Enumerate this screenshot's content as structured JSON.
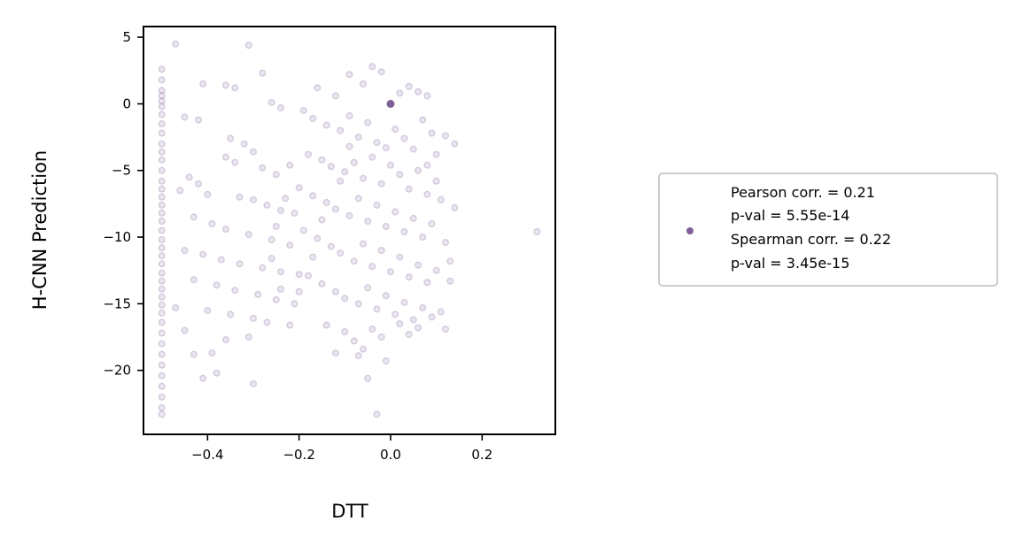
{
  "chart_data": {
    "type": "scatter",
    "xlabel": "DTT",
    "ylabel": "H-CNN Prediction",
    "xlim": [
      -0.54,
      0.36
    ],
    "ylim": [
      -24.8,
      5.8
    ],
    "x_ticks": [
      -0.4,
      -0.2,
      0.0,
      0.2
    ],
    "x_tick_labels": [
      "−0.4",
      "−0.2",
      "0.0",
      "0.2"
    ],
    "y_ticks": [
      5,
      0,
      -5,
      -10,
      -15,
      -20
    ],
    "y_tick_labels": [
      "5",
      "0",
      "−5",
      "−10",
      "−15",
      "−20"
    ],
    "grid": false,
    "point_color": "#7f5f99",
    "legend": {
      "placement": "outside-right",
      "lines": [
        "Pearson corr. = 0.21",
        "p-val = 5.55e-14",
        "Spearman corr. = 0.22",
        "p-val = 3.45e-15"
      ]
    },
    "series": [
      {
        "points": [
          [
            -0.5,
            2.6
          ],
          [
            -0.5,
            1.8
          ],
          [
            -0.5,
            1.0
          ],
          [
            -0.5,
            0.6
          ],
          [
            -0.5,
            0.2
          ],
          [
            -0.5,
            -0.2
          ],
          [
            -0.5,
            -0.8
          ],
          [
            -0.5,
            -1.5
          ],
          [
            -0.5,
            -2.2
          ],
          [
            -0.5,
            -3.0
          ],
          [
            -0.5,
            -3.6
          ],
          [
            -0.5,
            -4.2
          ],
          [
            -0.5,
            -5.0
          ],
          [
            -0.5,
            -5.8
          ],
          [
            -0.5,
            -6.4
          ],
          [
            -0.5,
            -7.0
          ],
          [
            -0.5,
            -7.6
          ],
          [
            -0.5,
            -8.2
          ],
          [
            -0.5,
            -8.8
          ],
          [
            -0.5,
            -9.5
          ],
          [
            -0.5,
            -10.2
          ],
          [
            -0.5,
            -10.8
          ],
          [
            -0.5,
            -11.4
          ],
          [
            -0.5,
            -12.0
          ],
          [
            -0.5,
            -12.7
          ],
          [
            -0.5,
            -13.3
          ],
          [
            -0.5,
            -13.9
          ],
          [
            -0.5,
            -14.5
          ],
          [
            -0.5,
            -15.1
          ],
          [
            -0.5,
            -15.7
          ],
          [
            -0.5,
            -16.4
          ],
          [
            -0.5,
            -17.2
          ],
          [
            -0.5,
            -18.0
          ],
          [
            -0.5,
            -18.8
          ],
          [
            -0.5,
            -19.6
          ],
          [
            -0.5,
            -20.4
          ],
          [
            -0.5,
            -21.2
          ],
          [
            -0.5,
            -22.0
          ],
          [
            -0.5,
            -22.8
          ],
          [
            -0.5,
            -23.3
          ],
          [
            -0.47,
            4.5
          ],
          [
            -0.31,
            4.4
          ],
          [
            -0.28,
            2.3
          ],
          [
            -0.41,
            1.5
          ],
          [
            -0.36,
            1.4
          ],
          [
            -0.34,
            1.2
          ],
          [
            -0.26,
            0.1
          ],
          [
            -0.24,
            -0.3
          ],
          [
            -0.45,
            -1.0
          ],
          [
            -0.42,
            -1.2
          ],
          [
            -0.35,
            -2.6
          ],
          [
            -0.32,
            -3.0
          ],
          [
            -0.3,
            -3.6
          ],
          [
            -0.36,
            -4.0
          ],
          [
            -0.34,
            -4.4
          ],
          [
            -0.28,
            -4.8
          ],
          [
            -0.25,
            -5.3
          ],
          [
            -0.44,
            -5.5
          ],
          [
            -0.42,
            -6.0
          ],
          [
            -0.46,
            -6.5
          ],
          [
            -0.4,
            -6.8
          ],
          [
            -0.33,
            -7.0
          ],
          [
            -0.3,
            -7.2
          ],
          [
            -0.27,
            -7.6
          ],
          [
            -0.24,
            -8.0
          ],
          [
            -0.21,
            -8.2
          ],
          [
            -0.43,
            -8.5
          ],
          [
            -0.39,
            -9.0
          ],
          [
            -0.36,
            -9.4
          ],
          [
            -0.31,
            -9.8
          ],
          [
            -0.26,
            -10.2
          ],
          [
            -0.22,
            -10.6
          ],
          [
            -0.45,
            -11.0
          ],
          [
            -0.41,
            -11.3
          ],
          [
            -0.37,
            -11.7
          ],
          [
            -0.33,
            -12.0
          ],
          [
            -0.28,
            -12.3
          ],
          [
            -0.24,
            -12.6
          ],
          [
            -0.2,
            -12.8
          ],
          [
            -0.43,
            -13.2
          ],
          [
            -0.38,
            -13.6
          ],
          [
            -0.34,
            -14.0
          ],
          [
            -0.29,
            -14.3
          ],
          [
            -0.25,
            -14.7
          ],
          [
            -0.21,
            -15.0
          ],
          [
            -0.47,
            -15.3
          ],
          [
            -0.4,
            -15.5
          ],
          [
            -0.35,
            -15.8
          ],
          [
            -0.3,
            -16.1
          ],
          [
            -0.27,
            -16.4
          ],
          [
            -0.22,
            -16.6
          ],
          [
            -0.45,
            -17.0
          ],
          [
            -0.36,
            -17.7
          ],
          [
            -0.31,
            -17.5
          ],
          [
            -0.43,
            -18.8
          ],
          [
            -0.39,
            -18.7
          ],
          [
            -0.41,
            -20.6
          ],
          [
            -0.38,
            -20.2
          ],
          [
            -0.3,
            -21.0
          ],
          [
            -0.16,
            1.2
          ],
          [
            -0.12,
            0.6
          ],
          [
            -0.09,
            2.2
          ],
          [
            -0.06,
            1.5
          ],
          [
            -0.04,
            2.8
          ],
          [
            -0.02,
            2.4
          ],
          [
            0.0,
            0.0
          ],
          [
            0.02,
            0.8
          ],
          [
            0.04,
            1.3
          ],
          [
            0.06,
            0.9
          ],
          [
            0.08,
            0.6
          ],
          [
            -0.19,
            -0.5
          ],
          [
            -0.17,
            -1.1
          ],
          [
            -0.14,
            -1.6
          ],
          [
            -0.11,
            -2.0
          ],
          [
            -0.09,
            -0.9
          ],
          [
            -0.07,
            -2.5
          ],
          [
            -0.05,
            -1.4
          ],
          [
            -0.03,
            -2.9
          ],
          [
            -0.01,
            -3.3
          ],
          [
            0.01,
            -1.9
          ],
          [
            0.03,
            -2.6
          ],
          [
            0.05,
            -3.4
          ],
          [
            0.07,
            -1.2
          ],
          [
            0.09,
            -2.2
          ],
          [
            0.12,
            -2.4
          ],
          [
            0.14,
            -3.0
          ],
          [
            -0.18,
            -3.8
          ],
          [
            -0.15,
            -4.2
          ],
          [
            -0.13,
            -4.7
          ],
          [
            -0.1,
            -5.1
          ],
          [
            -0.08,
            -4.4
          ],
          [
            -0.06,
            -5.6
          ],
          [
            -0.04,
            -4.0
          ],
          [
            -0.02,
            -6.0
          ],
          [
            0.0,
            -4.6
          ],
          [
            0.02,
            -5.3
          ],
          [
            0.04,
            -6.4
          ],
          [
            0.06,
            -5.0
          ],
          [
            0.08,
            -6.8
          ],
          [
            0.1,
            -5.8
          ],
          [
            0.11,
            -7.2
          ],
          [
            -0.2,
            -6.3
          ],
          [
            -0.17,
            -6.9
          ],
          [
            -0.14,
            -7.4
          ],
          [
            -0.12,
            -7.9
          ],
          [
            -0.09,
            -8.4
          ],
          [
            -0.07,
            -7.1
          ],
          [
            -0.05,
            -8.8
          ],
          [
            -0.03,
            -7.6
          ],
          [
            -0.01,
            -9.2
          ],
          [
            0.01,
            -8.1
          ],
          [
            0.03,
            -9.6
          ],
          [
            0.05,
            -8.6
          ],
          [
            0.07,
            -10.0
          ],
          [
            0.09,
            -9.0
          ],
          [
            0.12,
            -10.4
          ],
          [
            -0.19,
            -9.5
          ],
          [
            -0.16,
            -10.1
          ],
          [
            -0.13,
            -10.7
          ],
          [
            -0.11,
            -11.2
          ],
          [
            -0.08,
            -11.8
          ],
          [
            -0.06,
            -10.5
          ],
          [
            -0.04,
            -12.2
          ],
          [
            -0.02,
            -11.0
          ],
          [
            0.0,
            -12.6
          ],
          [
            0.02,
            -11.5
          ],
          [
            0.04,
            -13.0
          ],
          [
            0.06,
            -12.1
          ],
          [
            0.08,
            -13.4
          ],
          [
            0.1,
            -12.5
          ],
          [
            0.13,
            -13.3
          ],
          [
            -0.18,
            -12.9
          ],
          [
            -0.15,
            -13.5
          ],
          [
            -0.12,
            -14.1
          ],
          [
            -0.1,
            -14.6
          ],
          [
            -0.07,
            -15.0
          ],
          [
            -0.05,
            -13.8
          ],
          [
            -0.03,
            -15.4
          ],
          [
            -0.01,
            -14.4
          ],
          [
            0.01,
            -15.8
          ],
          [
            0.03,
            -14.9
          ],
          [
            0.05,
            -16.2
          ],
          [
            0.07,
            -15.3
          ],
          [
            0.09,
            -16.0
          ],
          [
            0.11,
            -15.6
          ],
          [
            -0.14,
            -16.6
          ],
          [
            -0.1,
            -17.1
          ],
          [
            -0.08,
            -17.8
          ],
          [
            -0.06,
            -18.4
          ],
          [
            -0.04,
            -16.9
          ],
          [
            -0.02,
            -17.5
          ],
          [
            0.02,
            -16.5
          ],
          [
            0.04,
            -17.3
          ],
          [
            0.06,
            -16.8
          ],
          [
            0.12,
            -16.9
          ],
          [
            -0.07,
            -18.9
          ],
          [
            -0.12,
            -18.7
          ],
          [
            -0.01,
            -19.3
          ],
          [
            -0.05,
            -20.6
          ],
          [
            -0.03,
            -23.3
          ],
          [
            0.32,
            -9.6
          ],
          [
            0.14,
            -7.8
          ],
          [
            0.13,
            -11.8
          ],
          [
            0.1,
            -3.8
          ],
          [
            0.08,
            -4.6
          ],
          [
            -0.11,
            -5.8
          ],
          [
            -0.09,
            -3.2
          ],
          [
            -0.15,
            -8.7
          ],
          [
            -0.17,
            -11.5
          ],
          [
            -0.2,
            -14.1
          ],
          [
            -0.22,
            -4.6
          ],
          [
            -0.23,
            -7.1
          ],
          [
            -0.25,
            -9.2
          ],
          [
            -0.26,
            -11.6
          ],
          [
            -0.24,
            -13.9
          ]
        ]
      }
    ]
  }
}
